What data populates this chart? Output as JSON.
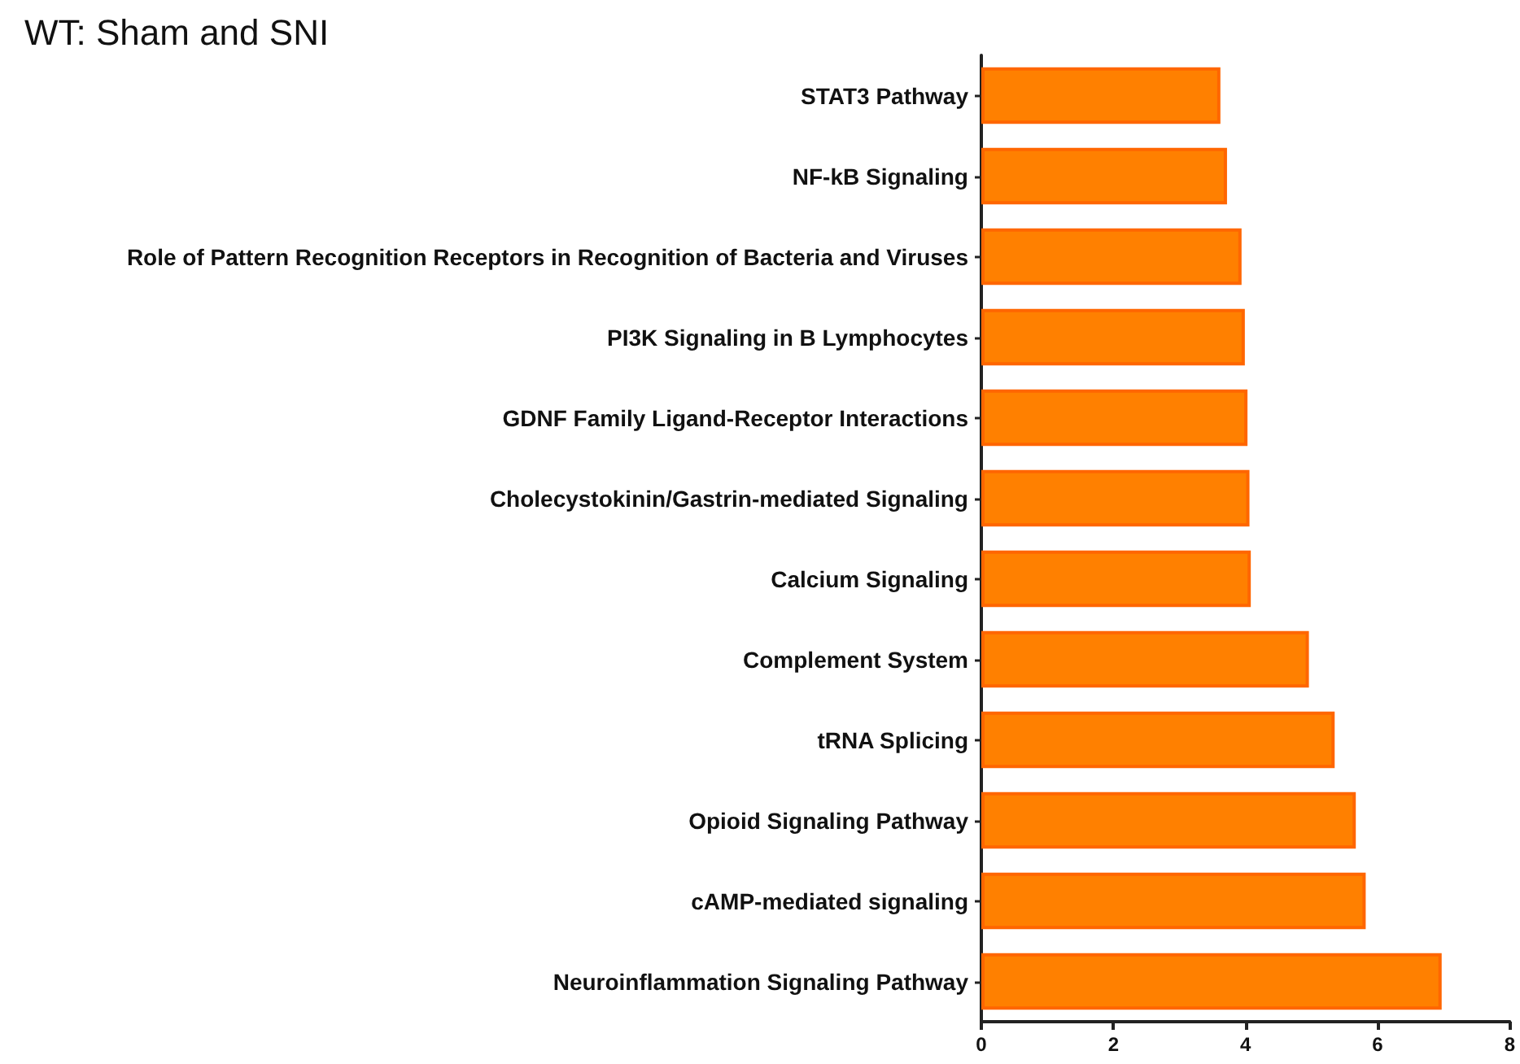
{
  "chart_data": {
    "type": "bar",
    "orientation": "horizontal",
    "title": "WT: Sham and SNI",
    "categories": [
      "STAT3 Pathway",
      "NF-kB Signaling",
      "Role of Pattern Recognition Receptors in Recognition of Bacteria and Viruses",
      "PI3K Signaling in B Lymphocytes",
      "GDNF Family Ligand-Receptor Interactions",
      "Cholecystokinin/Gastrin-mediated Signaling",
      "Calcium Signaling",
      "Complement System",
      "tRNA Splicing",
      "Opioid Signaling Pathway",
      "cAMP-mediated signaling",
      "Neuroinflammation Signaling Pathway"
    ],
    "values": [
      3.62,
      3.72,
      3.94,
      3.99,
      4.03,
      4.06,
      4.08,
      4.96,
      5.35,
      5.67,
      5.82,
      6.97
    ],
    "color": "#ff8000",
    "xlim": [
      0,
      8
    ],
    "xticks": [
      0,
      2,
      4,
      6,
      8
    ],
    "grid": false
  }
}
